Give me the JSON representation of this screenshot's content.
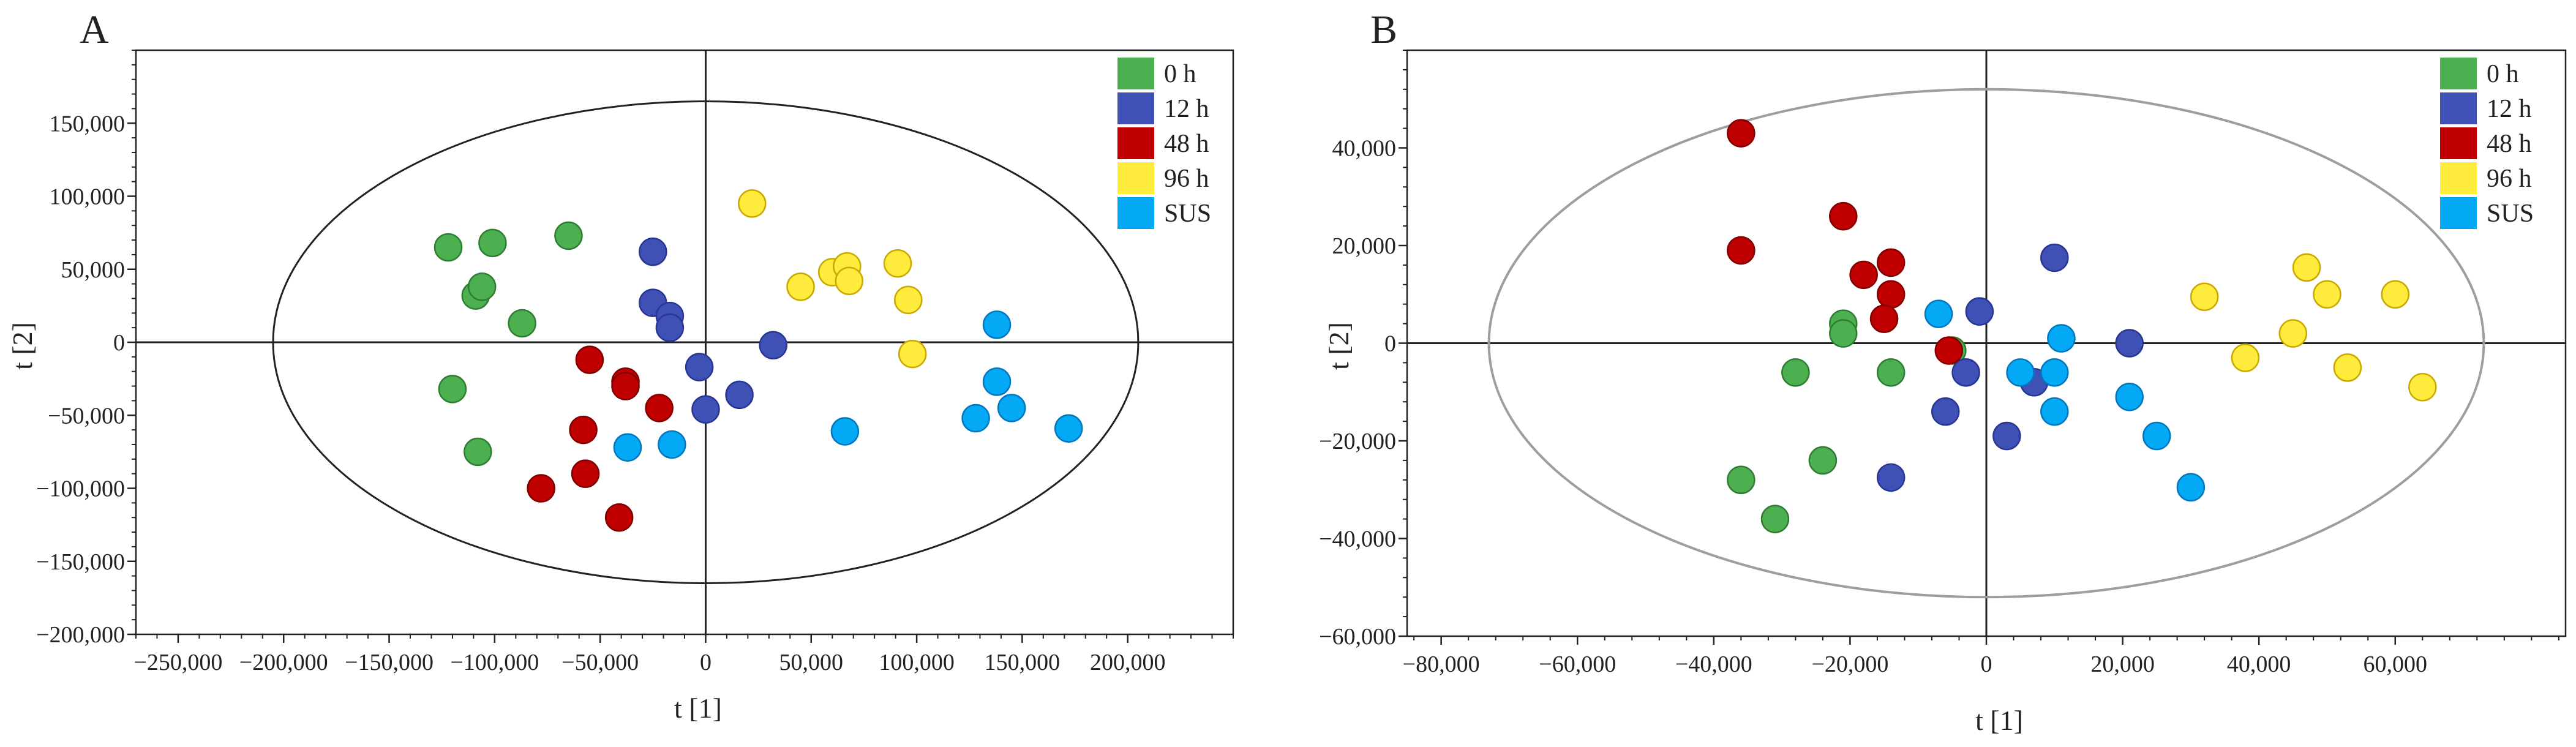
{
  "chart_data": [
    {
      "type": "scatter",
      "panel_label": "A",
      "title": "",
      "xlabel": "t [1]",
      "ylabel": "t [2]",
      "xlim": [
        -270000,
        250000
      ],
      "ylim": [
        -200000,
        200000
      ],
      "x_ticks": [
        -250000,
        -200000,
        -150000,
        -100000,
        -50000,
        0,
        50000,
        100000,
        150000,
        200000
      ],
      "x_tick_labels": [
        "−250,000",
        "−200,000",
        "−150,000",
        "−100,000",
        "−50,000",
        "0",
        "50,000",
        "100,000",
        "150,000",
        "200,000"
      ],
      "y_ticks": [
        -200000,
        -150000,
        -100000,
        -50000,
        0,
        50000,
        100000,
        150000
      ],
      "y_tick_labels": [
        "−200,000",
        "−150,000",
        "−100,000",
        "−50,000",
        "0",
        "50,000",
        "100,000",
        "150,000"
      ],
      "ellipse": {
        "cx": 0,
        "cy": 0,
        "rx": 205000,
        "ry": 165000,
        "stroke": "#222222"
      },
      "grid": false,
      "legend_position": "top-right",
      "series": [
        {
          "name": "0 h",
          "color": "#4caf50",
          "edge": "#2e7d32",
          "x": [
            -122000,
            -101000,
            -65000,
            -109000,
            -106000,
            -87000,
            -120000,
            -108000
          ],
          "y": [
            65000,
            68000,
            73000,
            32000,
            38000,
            13000,
            -32000,
            -75000
          ]
        },
        {
          "name": "12 h",
          "color": "#3f51b5",
          "edge": "#283593",
          "x": [
            -25000,
            -25000,
            -17000,
            -17000,
            -3000,
            32000,
            16000,
            0
          ],
          "y": [
            62000,
            27000,
            18000,
            10000,
            -17000,
            -2000,
            -36000,
            -46000
          ]
        },
        {
          "name": "48 h",
          "color": "#c00000",
          "edge": "#800000",
          "x": [
            -55000,
            -38000,
            -38000,
            -22000,
            -58000,
            -57000,
            -78000,
            -41000
          ],
          "y": [
            -12000,
            -27000,
            -30000,
            -45000,
            -60000,
            -90000,
            -100000,
            -120000
          ]
        },
        {
          "name": "96 h",
          "color": "#ffeb3b",
          "edge": "#c9a800",
          "x": [
            22000,
            45000,
            60000,
            67000,
            68000,
            91000,
            96000,
            98000
          ],
          "y": [
            95000,
            38000,
            48000,
            52000,
            42000,
            54000,
            29000,
            -8000
          ]
        },
        {
          "name": "SUS",
          "color": "#03a9f4",
          "edge": "#0277bd",
          "x": [
            -37000,
            -16000,
            66000,
            138000,
            138000,
            145000,
            128000,
            172000
          ],
          "y": [
            -72000,
            -70000,
            -61000,
            12000,
            -27000,
            -45000,
            -52000,
            -59000
          ]
        }
      ]
    },
    {
      "type": "scatter",
      "panel_label": "B",
      "title": "",
      "xlabel": "t [1]",
      "ylabel": "t [2]",
      "xlim": [
        -85000,
        85000
      ],
      "ylim": [
        -60000,
        60000
      ],
      "x_ticks": [
        -80000,
        -60000,
        -40000,
        -20000,
        0,
        20000,
        40000,
        60000
      ],
      "x_tick_labels": [
        "−80,000",
        "−60,000",
        "−40,000",
        "−20,000",
        "0",
        "20,000",
        "40,000",
        "60,000"
      ],
      "y_ticks": [
        -60000,
        -40000,
        -20000,
        0,
        20000,
        40000
      ],
      "y_tick_labels": [
        "−60,000",
        "−40,000",
        "−20,000",
        "0",
        "20,000",
        "40,000"
      ],
      "ellipse": {
        "cx": 0,
        "cy": 0,
        "rx": 73000,
        "ry": 52000,
        "stroke": "#9e9e9e"
      },
      "grid": false,
      "legend_position": "top-right",
      "series": [
        {
          "name": "0 h",
          "color": "#4caf50",
          "edge": "#2e7d32",
          "x": [
            -21000,
            -21000,
            -28000,
            -14000,
            -5000,
            -24000,
            -36000,
            -31000
          ],
          "y": [
            4000,
            2000,
            -6000,
            -6000,
            -1500,
            -24000,
            -28000,
            -36000
          ]
        },
        {
          "name": "12 h",
          "color": "#3f51b5",
          "edge": "#283593",
          "x": [
            10000,
            -1000,
            -6000,
            -3000,
            7000,
            3000,
            -14000,
            21000
          ],
          "y": [
            17500,
            6500,
            -14000,
            -6000,
            -8000,
            -19000,
            -27500,
            0
          ]
        },
        {
          "name": "48 h",
          "color": "#c00000",
          "edge": "#800000",
          "x": [
            -36000,
            -36000,
            -21000,
            -14000,
            -18000,
            -14000,
            -15000,
            -5500
          ],
          "y": [
            43000,
            19000,
            26000,
            16500,
            14000,
            10000,
            5000,
            -1500
          ]
        },
        {
          "name": "96 h",
          "color": "#ffeb3b",
          "edge": "#c9a800",
          "x": [
            32000,
            38000,
            45000,
            47000,
            50000,
            53000,
            60000,
            64000
          ],
          "y": [
            9500,
            -3000,
            2000,
            15500,
            10000,
            -5000,
            10000,
            -9000
          ]
        },
        {
          "name": "SUS",
          "color": "#03a9f4",
          "edge": "#0277bd",
          "x": [
            -7000,
            5000,
            10000,
            11000,
            10000,
            21000,
            25000,
            30000
          ],
          "y": [
            6000,
            -6000,
            -6000,
            1000,
            -14000,
            -11000,
            -19000,
            -29500
          ]
        }
      ]
    }
  ]
}
